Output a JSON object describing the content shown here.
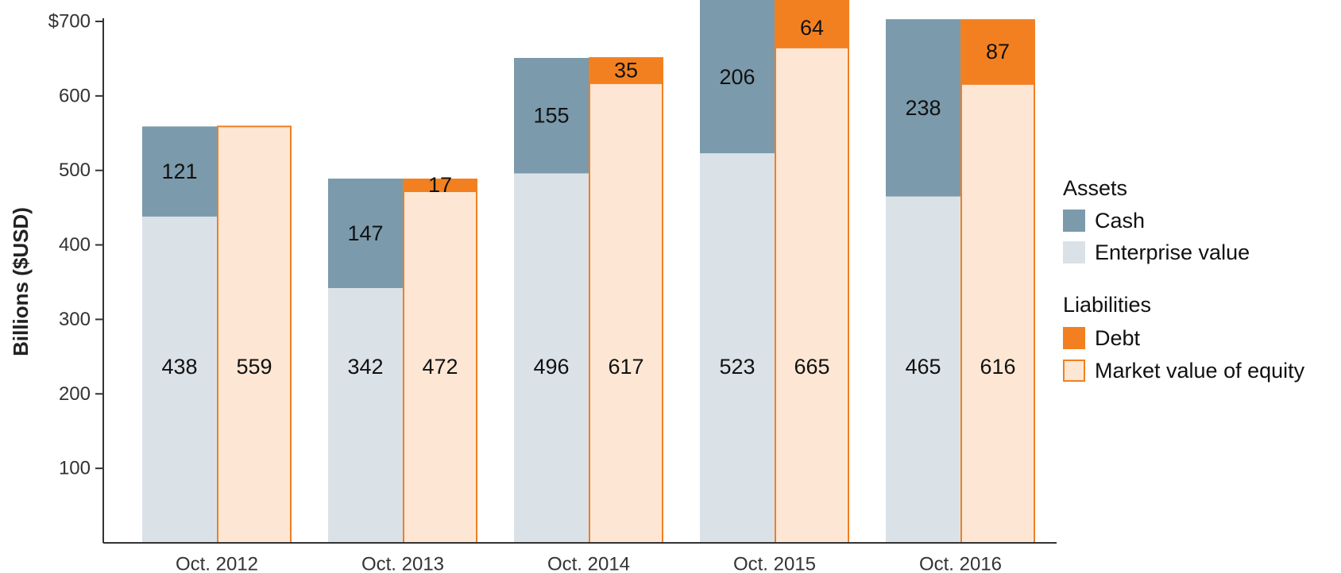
{
  "chart_data": {
    "type": "bar",
    "stacked": true,
    "title": "",
    "xlabel": "",
    "ylabel": "Billions ($USD)",
    "ylim": [
      0,
      700
    ],
    "yticks": [
      100,
      200,
      300,
      400,
      500,
      600,
      700
    ],
    "ytick_labels": [
      "100",
      "200",
      "300",
      "400",
      "500",
      "600",
      "$700"
    ],
    "grid": false,
    "categories": [
      "Oct. 2012",
      "Oct. 2013",
      "Oct. 2014",
      "Oct. 2015",
      "Oct. 2016"
    ],
    "stacks": [
      {
        "name": "Assets",
        "series": [
          {
            "name": "Enterprise value",
            "color": "#dae2e8",
            "values": [
              438,
              342,
              496,
              523,
              465
            ]
          },
          {
            "name": "Cash",
            "color": "#7b9aab",
            "values": [
              121,
              147,
              155,
              206,
              238
            ]
          }
        ]
      },
      {
        "name": "Liabilities",
        "series": [
          {
            "name": "Market value of equity",
            "color": "#fde7d4",
            "border": "#f07f22",
            "values": [
              559,
              472,
              617,
              665,
              616
            ]
          },
          {
            "name": "Debt",
            "color": "#f38020",
            "values": [
              null,
              17,
              35,
              64,
              87
            ]
          }
        ]
      }
    ],
    "legend": {
      "placement": "right",
      "groups": [
        {
          "heading": "Assets",
          "items": [
            {
              "label": "Cash",
              "color": "#7b9aab"
            },
            {
              "label": "Enterprise value",
              "color": "#dae2e8"
            }
          ]
        },
        {
          "heading": "Liabilities",
          "items": [
            {
              "label": "Debt",
              "color": "#f38020"
            },
            {
              "label": "Market value of equity",
              "color": "#fde7d4",
              "border": "#f07f22"
            }
          ]
        }
      ]
    }
  }
}
